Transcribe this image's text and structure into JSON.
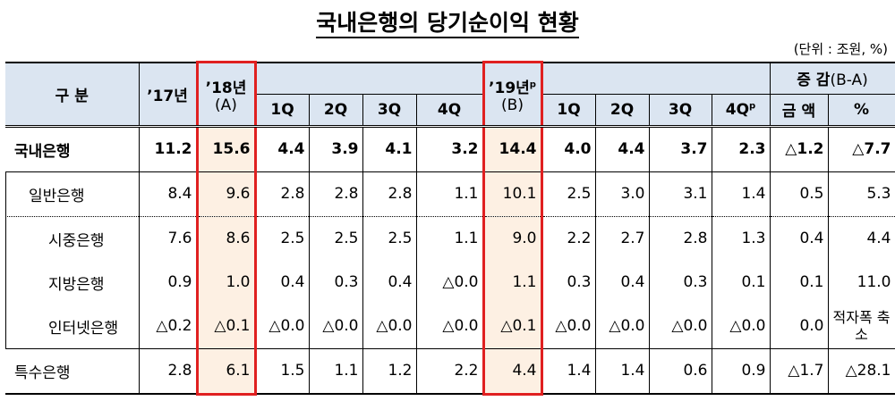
{
  "title": "국내은행의 당기순이익 현황",
  "unit": "(단위 : 조원, %)",
  "header": {
    "group": "구 분",
    "y17": "’17년",
    "y18": "’18년",
    "y18_sub": "(A)",
    "q18": [
      "1Q",
      "2Q",
      "3Q",
      "4Q"
    ],
    "y19": "’19년",
    "y19_sup": "p",
    "y19_sub": "(B)",
    "q19": [
      "1Q",
      "2Q",
      "3Q",
      "4Q"
    ],
    "q19_sup": "p",
    "diff": "증 감",
    "diff_sub": "(B-A)",
    "diff_cols": [
      "금 액",
      "%"
    ]
  },
  "table": {
    "rows": [
      {
        "label": "국내은행",
        "cells": [
          "11.2",
          "15.6",
          "4.4",
          "3.9",
          "4.1",
          "3.2",
          "14.4",
          "4.0",
          "4.4",
          "3.7",
          "2.3",
          "△1.2",
          "△7.7"
        ]
      },
      {
        "label": "일반은행",
        "cells": [
          "8.4",
          "9.6",
          "2.8",
          "2.8",
          "2.8",
          "1.1",
          "10.1",
          "2.5",
          "3.0",
          "3.1",
          "1.4",
          "0.5",
          "5.3"
        ]
      },
      {
        "label": "시중은행",
        "cells": [
          "7.6",
          "8.6",
          "2.5",
          "2.5",
          "2.5",
          "1.1",
          "9.0",
          "2.2",
          "2.7",
          "2.8",
          "1.3",
          "0.4",
          "4.4"
        ]
      },
      {
        "label": "지방은행",
        "cells": [
          "0.9",
          "1.0",
          "0.4",
          "0.3",
          "0.4",
          "△0.0",
          "1.1",
          "0.3",
          "0.4",
          "0.3",
          "0.1",
          "0.1",
          "11.0"
        ]
      },
      {
        "label": "인터넷은행",
        "cells": [
          "△0.2",
          "△0.1",
          "△0.0",
          "△0.0",
          "△0.0",
          "△0.0",
          "△0.1",
          "△0.0",
          "△0.0",
          "△0.0",
          "△0.0",
          "0.0",
          "적자폭 축소"
        ]
      },
      {
        "label": "특수은행",
        "cells": [
          "2.8",
          "6.1",
          "1.5",
          "1.1",
          "1.2",
          "2.2",
          "4.4",
          "1.4",
          "1.4",
          "0.6",
          "0.9",
          "△1.7",
          "△28.1"
        ]
      }
    ]
  }
}
